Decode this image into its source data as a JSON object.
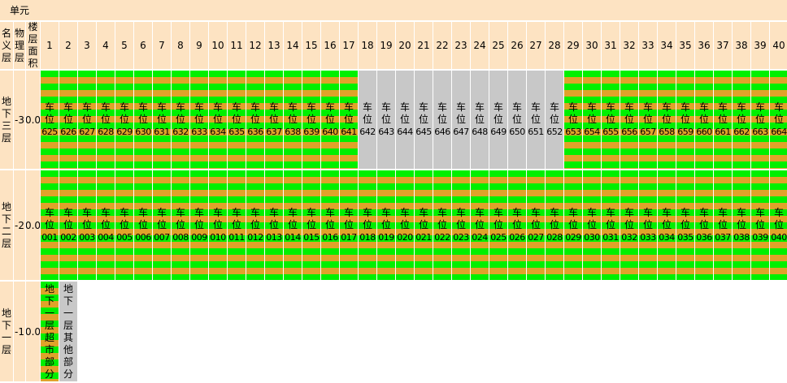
{
  "header": {
    "unit": "单元",
    "nominal_floor": "名义层",
    "physical_floor": "物理层",
    "floor_area": "楼层面积",
    "columns": [
      "1",
      "2",
      "3",
      "4",
      "5",
      "6",
      "7",
      "8",
      "9",
      "10",
      "11",
      "12",
      "13",
      "14",
      "15",
      "16",
      "17",
      "18",
      "19",
      "20",
      "21",
      "22",
      "23",
      "24",
      "25",
      "26",
      "27",
      "28",
      "29",
      "30",
      "31",
      "32",
      "33",
      "34",
      "35",
      "36",
      "37",
      "38",
      "39",
      "40"
    ]
  },
  "rows": [
    {
      "name": "地下三层",
      "physical": "-3",
      "area": "0.0",
      "cells": [
        {
          "text": "车位",
          "code": "625",
          "style": "striped"
        },
        {
          "text": "车位",
          "code": "626",
          "style": "striped"
        },
        {
          "text": "车位",
          "code": "627",
          "style": "striped"
        },
        {
          "text": "车位",
          "code": "628",
          "style": "striped"
        },
        {
          "text": "车位",
          "code": "629",
          "style": "striped"
        },
        {
          "text": "车位",
          "code": "630",
          "style": "striped"
        },
        {
          "text": "车位",
          "code": "631",
          "style": "striped"
        },
        {
          "text": "车位",
          "code": "632",
          "style": "striped"
        },
        {
          "text": "车位",
          "code": "633",
          "style": "striped"
        },
        {
          "text": "车位",
          "code": "634",
          "style": "striped"
        },
        {
          "text": "车位",
          "code": "635",
          "style": "striped"
        },
        {
          "text": "车位",
          "code": "636",
          "style": "striped"
        },
        {
          "text": "车位",
          "code": "637",
          "style": "striped"
        },
        {
          "text": "车位",
          "code": "638",
          "style": "striped"
        },
        {
          "text": "车位",
          "code": "639",
          "style": "striped"
        },
        {
          "text": "车位",
          "code": "640",
          "style": "striped"
        },
        {
          "text": "车位",
          "code": "641",
          "style": "striped"
        },
        {
          "text": "车位",
          "code": "642",
          "style": "gray"
        },
        {
          "text": "车位",
          "code": "643",
          "style": "gray"
        },
        {
          "text": "车位",
          "code": "644",
          "style": "gray"
        },
        {
          "text": "车位",
          "code": "645",
          "style": "gray"
        },
        {
          "text": "车位",
          "code": "646",
          "style": "gray"
        },
        {
          "text": "车位",
          "code": "647",
          "style": "gray"
        },
        {
          "text": "车位",
          "code": "648",
          "style": "gray"
        },
        {
          "text": "车位",
          "code": "649",
          "style": "gray"
        },
        {
          "text": "车位",
          "code": "650",
          "style": "gray"
        },
        {
          "text": "车位",
          "code": "651",
          "style": "gray"
        },
        {
          "text": "车位",
          "code": "652",
          "style": "gray"
        },
        {
          "text": "车位",
          "code": "653",
          "style": "striped"
        },
        {
          "text": "车位",
          "code": "654",
          "style": "striped"
        },
        {
          "text": "车位",
          "code": "655",
          "style": "striped"
        },
        {
          "text": "车位",
          "code": "656",
          "style": "striped"
        },
        {
          "text": "车位",
          "code": "657",
          "style": "striped"
        },
        {
          "text": "车位",
          "code": "658",
          "style": "striped"
        },
        {
          "text": "车位",
          "code": "659",
          "style": "striped"
        },
        {
          "text": "车位",
          "code": "660",
          "style": "striped"
        },
        {
          "text": "车位",
          "code": "661",
          "style": "striped"
        },
        {
          "text": "车位",
          "code": "662",
          "style": "striped"
        },
        {
          "text": "车位",
          "code": "663",
          "style": "striped"
        },
        {
          "text": "车位",
          "code": "664",
          "style": "striped"
        }
      ]
    },
    {
      "name": "地下二层",
      "physical": "-2",
      "area": "0.0",
      "cells": [
        {
          "text": "车位",
          "code": "001",
          "style": "striped"
        },
        {
          "text": "车位",
          "code": "002",
          "style": "striped"
        },
        {
          "text": "车位",
          "code": "003",
          "style": "striped"
        },
        {
          "text": "车位",
          "code": "004",
          "style": "striped"
        },
        {
          "text": "车位",
          "code": "005",
          "style": "striped"
        },
        {
          "text": "车位",
          "code": "006",
          "style": "striped"
        },
        {
          "text": "车位",
          "code": "007",
          "style": "striped"
        },
        {
          "text": "车位",
          "code": "008",
          "style": "striped"
        },
        {
          "text": "车位",
          "code": "009",
          "style": "striped"
        },
        {
          "text": "车位",
          "code": "010",
          "style": "striped"
        },
        {
          "text": "车位",
          "code": "011",
          "style": "striped"
        },
        {
          "text": "车位",
          "code": "012",
          "style": "striped"
        },
        {
          "text": "车位",
          "code": "013",
          "style": "striped"
        },
        {
          "text": "车位",
          "code": "014",
          "style": "striped"
        },
        {
          "text": "车位",
          "code": "015",
          "style": "striped"
        },
        {
          "text": "车位",
          "code": "016",
          "style": "striped"
        },
        {
          "text": "车位",
          "code": "017",
          "style": "striped"
        },
        {
          "text": "车位",
          "code": "018",
          "style": "striped"
        },
        {
          "text": "车位",
          "code": "019",
          "style": "striped"
        },
        {
          "text": "车位",
          "code": "020",
          "style": "striped"
        },
        {
          "text": "车位",
          "code": "021",
          "style": "striped"
        },
        {
          "text": "车位",
          "code": "022",
          "style": "striped"
        },
        {
          "text": "车位",
          "code": "023",
          "style": "striped"
        },
        {
          "text": "车位",
          "code": "024",
          "style": "striped"
        },
        {
          "text": "车位",
          "code": "025",
          "style": "striped"
        },
        {
          "text": "车位",
          "code": "026",
          "style": "striped"
        },
        {
          "text": "车位",
          "code": "027",
          "style": "striped"
        },
        {
          "text": "车位",
          "code": "028",
          "style": "striped"
        },
        {
          "text": "车位",
          "code": "029",
          "style": "striped"
        },
        {
          "text": "车位",
          "code": "030",
          "style": "striped"
        },
        {
          "text": "车位",
          "code": "031",
          "style": "striped"
        },
        {
          "text": "车位",
          "code": "032",
          "style": "striped"
        },
        {
          "text": "车位",
          "code": "033",
          "style": "striped"
        },
        {
          "text": "车位",
          "code": "034",
          "style": "striped"
        },
        {
          "text": "车位",
          "code": "035",
          "style": "striped"
        },
        {
          "text": "车位",
          "code": "036",
          "style": "striped"
        },
        {
          "text": "车位",
          "code": "037",
          "style": "striped"
        },
        {
          "text": "车位",
          "code": "038",
          "style": "striped"
        },
        {
          "text": "车位",
          "code": "039",
          "style": "striped"
        },
        {
          "text": "车位",
          "code": "040",
          "style": "striped"
        }
      ]
    },
    {
      "name": "地下一层",
      "physical": "-1",
      "area": "0.0",
      "cells": [
        {
          "text": "地下一层超市部分",
          "style": "striped"
        },
        {
          "text": "地下一层其他部分",
          "style": "gray"
        }
      ]
    }
  ]
}
